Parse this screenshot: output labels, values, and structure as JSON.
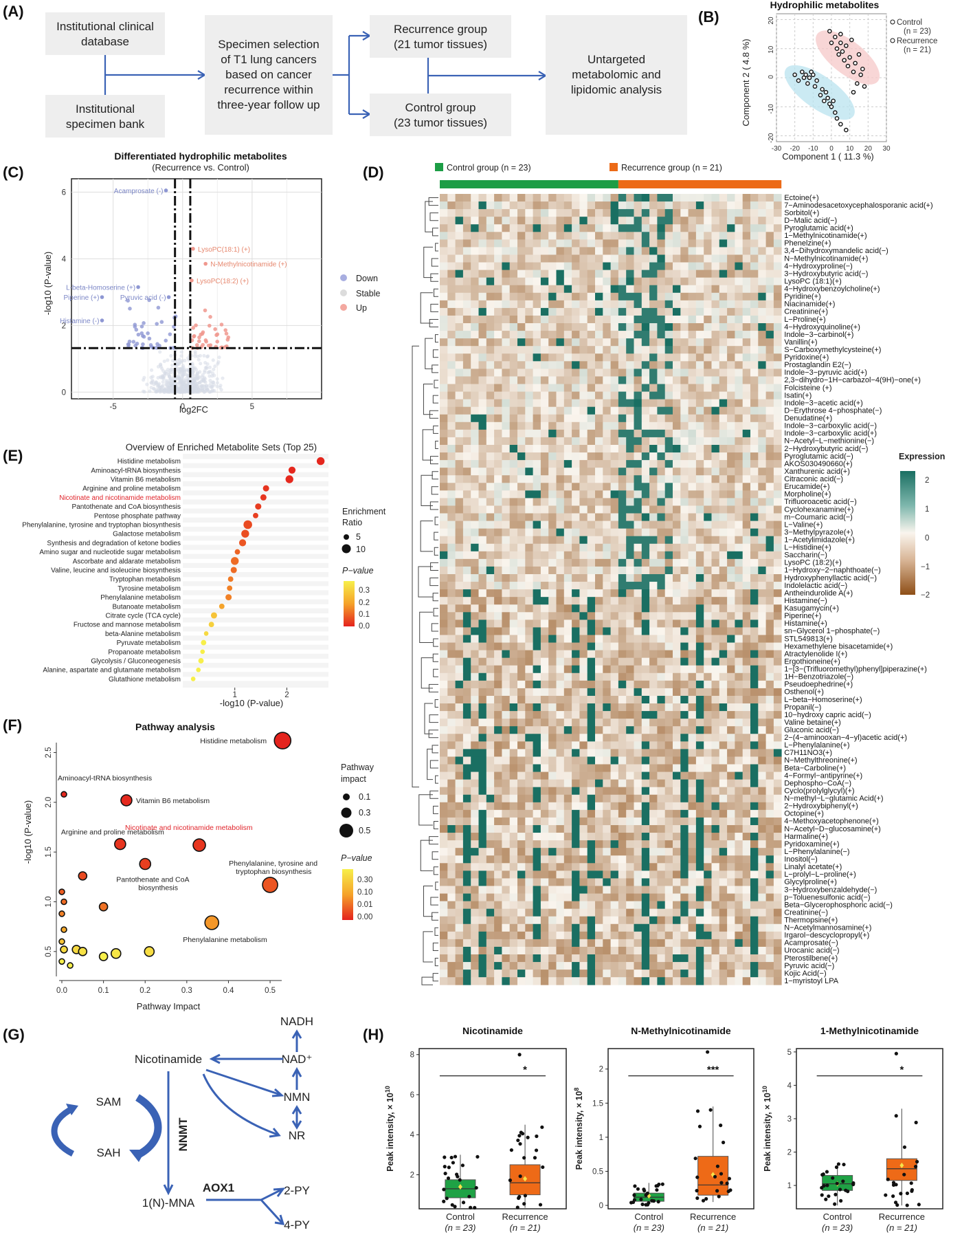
{
  "panelA": {
    "label": "(A)",
    "box_db": [
      "Institutional clinical",
      "database"
    ],
    "box_bank": [
      "Institutional",
      "specimen bank"
    ],
    "box_select": [
      "Specimen selection",
      "of T1 lung cancers",
      "based on cancer",
      "recurrence within",
      "three-year follow up"
    ],
    "box_rec": [
      "Recurrence group",
      "(21 tumor tissues)"
    ],
    "box_ctrl": [
      "Control group",
      "(23 tumor tissues)"
    ],
    "box_untarget": [
      "Untargeted",
      "metabolomic and",
      "lipidomic analysis"
    ]
  },
  "panelB": {
    "label": "(B)",
    "chart_data": {
      "type": "scatter",
      "title": "Hydrophilic metabolites",
      "xlabel": "Component 1 ( 11.3 %)",
      "ylabel": "Component 2 ( 4.8 %)",
      "xlim": [
        -30,
        30
      ],
      "ylim": [
        -22,
        22
      ],
      "xticks": [
        -30,
        -20,
        -10,
        0,
        10,
        20,
        30
      ],
      "yticks": [
        -20,
        -10,
        0,
        10,
        20
      ],
      "legend": [
        "Control",
        "(n = 23)",
        "Recurrence",
        "(n = 21)"
      ],
      "series": [
        {
          "name": "Control",
          "color": "#b9e3ef",
          "x": [
            -20,
            -18,
            -16,
            -15,
            -14,
            -13,
            -12,
            -11,
            -10,
            -9,
            -8,
            -6,
            -5,
            -4,
            -3,
            -2,
            -1,
            0,
            1,
            2,
            3,
            5,
            8
          ],
          "y": [
            1,
            -1,
            2,
            0,
            1,
            -2,
            0,
            2,
            1,
            -3,
            -1,
            -6,
            -4,
            -8,
            -5,
            -7,
            -9,
            -10,
            -8,
            -12,
            -14,
            -16,
            -18
          ]
        },
        {
          "name": "Recurrence",
          "color": "#f6c8c8",
          "x": [
            -1,
            0,
            2,
            3,
            4,
            5,
            6,
            7,
            8,
            9,
            10,
            11,
            12,
            13,
            14,
            15,
            16,
            17,
            18,
            5,
            12
          ],
          "y": [
            16,
            12,
            14,
            10,
            8,
            12,
            9,
            6,
            11,
            4,
            7,
            13,
            2,
            5,
            -2,
            8,
            1,
            3,
            -3,
            15,
            -5
          ]
        }
      ]
    }
  },
  "panelC": {
    "label": "(C)",
    "chart_data": {
      "type": "scatter",
      "title": "Differentiated hydrophilic metabolites",
      "subtitle": "(Recurrence vs. Control)",
      "xlabel": "log2FC",
      "ylabel": "-log10 (P-value)",
      "xlim": [
        -8,
        10
      ],
      "ylim": [
        -0.2,
        6.4
      ],
      "xticks": [
        -5,
        0,
        5
      ],
      "yticks": [
        0,
        2,
        4,
        6
      ],
      "legend": [
        "Down",
        "Stable",
        "Up"
      ],
      "annotations": [
        {
          "text": "Acamprosate (-)",
          "x": -1.3,
          "y": 6.05,
          "color": "#7b86c6"
        },
        {
          "text": "LysoPC(18:1) (+)",
          "x": 1.0,
          "y": 4.3,
          "color": "#e6876e"
        },
        {
          "text": "N-Methylnicotinamide (+)",
          "x": 1.9,
          "y": 3.85,
          "color": "#e6876e"
        },
        {
          "text": "LysoPC(18:2) (+)",
          "x": 0.9,
          "y": 3.35,
          "color": "#e6876e"
        },
        {
          "text": "L-beta-Homoserine (+)",
          "x": -3.3,
          "y": 3.15,
          "color": "#7b86c6"
        },
        {
          "text": "Piperine (+)",
          "x": -5.9,
          "y": 2.85,
          "color": "#7b86c6"
        },
        {
          "text": "Pyruvic acid (-)",
          "x": -1.1,
          "y": 2.85,
          "color": "#7b86c6"
        },
        {
          "text": "Histamine (-)",
          "x": -5.9,
          "y": 2.15,
          "color": "#7b86c6"
        }
      ]
    }
  },
  "panelD": {
    "label": "(D)",
    "groups": [
      "Control group (n = 23)",
      "Recurrence group (n = 21)"
    ],
    "group_colors": [
      "#1c9d45",
      "#ec6a17"
    ],
    "legend_title": "Expression",
    "legend_ticks": [
      "2",
      "1",
      "0",
      "−1",
      "−2"
    ],
    "highlight_color": "#e0232a",
    "highlighted": [
      "1−Methylnicotinamide(+)",
      "N−Methylnicotinamide(+)"
    ],
    "rows": [
      "Ectoine(+)",
      "7−Aminodesacetoxycephalosporanic acid(+)",
      "Sorbitol(+)",
      "D−Malic acid(−)",
      "Pyroglutamic acid(+)",
      "1−Methylnicotinamide(+)",
      "Phenelzine(+)",
      "3,4−Dihydroxymandelic acid(−)",
      "N−Methylnicotinamide(+)",
      "4−Hydroxyproline(−)",
      "3−Hydroxybutyric acid(−)",
      "LysoPC (18:1)(+)",
      "4−Hydroxybenzoylcholine(+)",
      "Pyridine(+)",
      "Niacinamide(+)",
      "Creatinine(+)",
      "L−Proline(+)",
      "4−Hydroxyquinoline(+)",
      "Indole−3−carbinol(+)",
      "Vanillin(+)",
      "S−Carboxymethylcysteine(+)",
      "Pyridoxine(+)",
      "Prostaglandin E2(−)",
      "Indole−3−pyruvic acid(+)",
      "2,3−dihydro−1H−carbazol−4(9H)−one(+)",
      "Folcisteine (+)",
      "Isatin(+)",
      "Indole−3−acetic acid(+)",
      "D−Erythrose 4−phosphate(−)",
      "Denudatine(+)",
      "Indole−3−carboxylic acid(−)",
      "Indole−3−carboxylic acid(+)",
      "N−Acetyl−L−methionine(−)",
      "2−Hydroxybutyric acid(−)",
      "Pyroglutamic acid(−)",
      "AKOS030490660(+)",
      "Xanthurenic acid(+)",
      "Citraconic acid(−)",
      "Erucamide(+)",
      "Morpholine(+)",
      "Trifluoroacetic acid(−)",
      "Cyclohexanamine(+)",
      "m−Coumaric acid(−)",
      "L−Valine(+)",
      "3−Methylpyrazole(+)",
      "1−Acetylimidazole(+)",
      "L−Histidine(+)",
      "Saccharin(−)",
      "LysoPC (18:2)(+)",
      "1−Hydroxy−2−naphthoate(−)",
      "Hydroxyphenyllactic acid(−)",
      "Indolelactic acid(−)",
      "Antheindurolide A(+)",
      "Histamine(−)",
      "Kasugamycin(+)",
      "Piperine(+)",
      "Histamine(+)",
      "sn−Glycerol 1−phosphate(−)",
      "STL549813(+)",
      "Hexamethylene bisacetamide(+)",
      "Atractylenolide I(+)",
      "Ergothioneine(+)",
      "1−[3−(Trifluoromethyl)phenyl]piperazine(+)",
      "1H−Benzotriazole(−)",
      "Pseudoephedrine(+)",
      "Osthenol(+)",
      "L−beta−Homoserine(+)",
      "Propanil(−)",
      "10−hydroxy capric acid(−)",
      "Valine betaine(+)",
      "Gluconic acid(−)",
      "2−(4−aminooxan−4−yl)acetic acid(+)",
      "L−Phenylalanine(+)",
      "C7H11NO3(+)",
      "N−Methylthreonine(+)",
      "Beta−Carboline(+)",
      "4−Formyl−antipyrine(+)",
      "Dephospho−CoA(−)",
      "Cyclo(prolylglycyl)(+)",
      "N−methyl−L−glutamic Acid(+)",
      "2−Hydroxybiphenyl(+)",
      "Octopine(+)",
      "4−Methoxyacetophenone(+)",
      "N−Acetyl−D−glucosamine(+)",
      "Harmaline(+)",
      "Pyridoxamine(+)",
      "L−Phenylalanine(−)",
      "Inositol(−)",
      "Linalyl acetate(+)",
      "L−prolyl−L−proline(+)",
      "Glycylproline(+)",
      "3−Hydroxybenzaldehyde(−)",
      "p−Toluenesulfonic acid(−)",
      "Beta−Glycerophosphoric acid(−)",
      "Creatinine(−)",
      "Thermopsine(+)",
      "N−Acetylmannosamine(+)",
      "Irgarol−descyclopropyl(+)",
      "Acamprosate(−)",
      "Urocanic acid(−)",
      "Pterostilbene(+)",
      "Pyruvic acid(−)",
      "Kojic Acid(−)",
      "1−myristoyl LPA"
    ]
  },
  "panelE": {
    "label": "(E)",
    "chart_data": {
      "type": "scatter",
      "title": "Overview of Enriched Metabolite Sets (Top 25)",
      "xlabel": "-log10 (P-value)",
      "xticks": [
        1,
        2
      ],
      "highlight": "Nicotinate and nicotinamide metabolism",
      "categories": [
        "Histidine metabolism",
        "Aminoacyl-tRNA biosynthesis",
        "Vitamin B6 metabolism",
        "Arginine and proline metabolism",
        "Nicotinate and nicotinamide metabolism",
        "Pantothenate and CoA biosynthesis",
        "Pentose phosphate pathway",
        "Phenylalanine, tyrosine and tryptophan biosynthesis",
        "Galactose metabolism",
        "Synthesis and degradation of ketone bodies",
        "Amino sugar and nucleotide sugar metabolism",
        "Ascorbate and aldarate metabolism",
        "Valine, leucine and isoleucine biosynthesis",
        "Tryptophan metabolism",
        "Tyrosine metabolism",
        "Phenylalanine metabolism",
        "Butanoate metabolism",
        "Citrate cycle (TCA cycle)",
        "Fructose and mannose metabolism",
        "beta-Alanine metabolism",
        "Pyruvate metabolism",
        "Propanoate metabolism",
        "Glycolysis / Gluconeogenesis",
        "Alanine, aspartate and glutamate metabolism",
        "Glutathione metabolism"
      ],
      "values": [
        2.65,
        2.1,
        2.05,
        1.6,
        1.55,
        1.45,
        1.4,
        1.25,
        1.2,
        1.15,
        1.05,
        1.0,
        0.98,
        0.92,
        0.9,
        0.88,
        0.75,
        0.6,
        0.55,
        0.45,
        0.4,
        0.38,
        0.35,
        0.3,
        0.2
      ],
      "sizes": [
        8,
        7,
        8,
        6,
        6,
        6,
        5,
        9,
        8,
        7,
        5,
        8,
        6,
        5,
        5,
        6,
        5,
        6,
        5,
        4,
        5,
        4,
        5,
        4,
        4
      ],
      "pvalues": [
        0.005,
        0.008,
        0.009,
        0.025,
        0.028,
        0.035,
        0.04,
        0.055,
        0.06,
        0.07,
        0.09,
        0.1,
        0.1,
        0.12,
        0.13,
        0.13,
        0.18,
        0.25,
        0.28,
        0.3,
        0.35,
        0.4,
        0.42,
        0.45,
        0.5
      ],
      "legend_size_title": [
        "Enrichment",
        "Ratio"
      ],
      "legend_sizes": [
        "5",
        "10"
      ],
      "legend_p_title": "P−value",
      "legend_p_ticks": [
        "0.3",
        "0.2",
        "0.1",
        "0.0"
      ]
    }
  },
  "panelF": {
    "label": "(F)",
    "chart_data": {
      "type": "scatter",
      "title": "Pathway analysis",
      "xlabel": "Pathway Impact",
      "ylabel": "-log10 (P-value)",
      "xlim": [
        0,
        0.52
      ],
      "ylim": [
        0.25,
        2.6
      ],
      "xticks": [
        0.0,
        0.1,
        0.2,
        0.3,
        0.4,
        0.5
      ],
      "yticks": [
        0.5,
        1.0,
        1.5,
        2.0,
        2.5
      ],
      "x": [
        0.53,
        0.005,
        0.155,
        0.14,
        0.33,
        0.2,
        0.5,
        0.05,
        0.36,
        0.0,
        0.005,
        0.0,
        0.1,
        0.005,
        0.0,
        0.005,
        0.035,
        0.05,
        0.13,
        0.21,
        0.1,
        0.0,
        0.02
      ],
      "y": [
        2.62,
        2.08,
        2.02,
        1.58,
        1.57,
        1.38,
        1.17,
        1.26,
        0.79,
        1.1,
        1.0,
        0.88,
        0.95,
        0.72,
        0.6,
        0.52,
        0.52,
        0.5,
        0.48,
        0.5,
        0.45,
        0.4,
        0.36
      ],
      "impact_sizes": [
        12,
        4,
        8,
        8,
        9,
        8,
        11,
        6,
        10,
        4,
        4,
        4,
        6,
        4,
        4,
        5,
        6,
        6,
        7,
        7,
        6,
        4,
        4
      ],
      "pvalues": [
        0.002,
        0.008,
        0.009,
        0.026,
        0.027,
        0.04,
        0.07,
        0.055,
        0.16,
        0.08,
        0.1,
        0.13,
        0.11,
        0.19,
        0.25,
        0.3,
        0.3,
        0.32,
        0.33,
        0.31,
        0.35,
        0.4,
        0.44
      ],
      "annotations": [
        {
          "text": "Histidine metabolism",
          "color": "#222"
        },
        {
          "text": "Aminoacyl-tRNA biosynthesis",
          "color": "#222"
        },
        {
          "text": "Vitamin B6 metabolism",
          "color": "#222"
        },
        {
          "text": "Arginine and proline metabolism",
          "color": "#222"
        },
        {
          "text": "Nicotinate and nicotinamide metabolism",
          "color": "#e0232a"
        },
        {
          "text": "Pantothenate and CoA",
          "color": "#222"
        },
        {
          "text": "biosynthesis",
          "color": "#222"
        },
        {
          "text": "Phenylalanine, tyrosine and",
          "color": "#222"
        },
        {
          "text": "tryptophan biosynthesis",
          "color": "#222"
        },
        {
          "text": "Phenylalanine metabolism",
          "color": "#222"
        }
      ],
      "legend_size_title": [
        "Pathway",
        "impact"
      ],
      "legend_sizes": [
        "0.1",
        "0.3",
        "0.5"
      ],
      "legend_p_title": "P−value",
      "legend_p_ticks": [
        "0.30",
        "0.10",
        "0.01",
        "0.00"
      ]
    }
  },
  "panelG": {
    "label": "(G)",
    "nodes": {
      "nadh": "NADH",
      "nad": "NAD⁺",
      "nicotinamide": "Nicotinamide",
      "nmn": "NMN",
      "nr": "NR",
      "sam": "SAM",
      "sah": "SAH",
      "nnmt": "NNMT",
      "mna": "1(N)-MNA",
      "aox1": "AOX1",
      "py2": "2-PY",
      "py4": "4-PY"
    }
  },
  "panelH": {
    "label": "(H)",
    "ylabel": "Peak intensity, × 10",
    "chart_data": [
      {
        "type": "box",
        "title": "Nicotinamide",
        "exponent": "10",
        "categories": [
          "Control",
          "Recurrence"
        ],
        "counts": [
          "(n = 23)",
          "(n = 21)"
        ],
        "sig": "*",
        "ylim": [
          0.3,
          8.3
        ],
        "yticks": [
          2,
          4,
          6,
          8
        ],
        "boxes": [
          {
            "q1": 0.85,
            "median": 1.3,
            "q3": 1.75,
            "low": 0.35,
            "high": 3.0,
            "mean": 1.4
          },
          {
            "q1": 1.0,
            "median": 1.6,
            "q3": 2.5,
            "low": 0.35,
            "high": 4.5,
            "mean": 1.8
          }
        ],
        "outliers": [
          [],
          [
            8.0
          ]
        ]
      },
      {
        "type": "box",
        "title": "N-Methylnicotinamide",
        "exponent": "8",
        "categories": [
          "Control",
          "Recurrence"
        ],
        "counts": [
          "(n = 23)",
          "(n = 21)"
        ],
        "sig": "***",
        "ylim": [
          -0.05,
          2.3
        ],
        "yticks": [
          0.0,
          0.5,
          1.0,
          1.5,
          2.0
        ],
        "boxes": [
          {
            "q1": 0.06,
            "median": 0.12,
            "q3": 0.18,
            "low": 0.0,
            "high": 0.33,
            "mean": 0.14
          },
          {
            "q1": 0.15,
            "median": 0.3,
            "q3": 0.72,
            "low": 0.05,
            "high": 1.45,
            "mean": 0.45
          }
        ],
        "outliers": [
          [],
          [
            2.25
          ]
        ]
      },
      {
        "type": "box",
        "title": "1-Methylnicotinamide",
        "exponent": "10",
        "categories": [
          "Control",
          "Recurrence"
        ],
        "counts": [
          "(n = 23)",
          "(n = 21)"
        ],
        "sig": "*",
        "ylim": [
          0.3,
          5.1
        ],
        "yticks": [
          1,
          2,
          3,
          4,
          5
        ],
        "boxes": [
          {
            "q1": 0.85,
            "median": 1.05,
            "q3": 1.3,
            "low": 0.4,
            "high": 1.65,
            "mean": 1.05
          },
          {
            "q1": 1.15,
            "median": 1.5,
            "q3": 1.8,
            "low": 0.4,
            "high": 3.3,
            "mean": 1.6
          }
        ],
        "outliers": [
          [],
          [
            4.95
          ]
        ]
      }
    ]
  }
}
